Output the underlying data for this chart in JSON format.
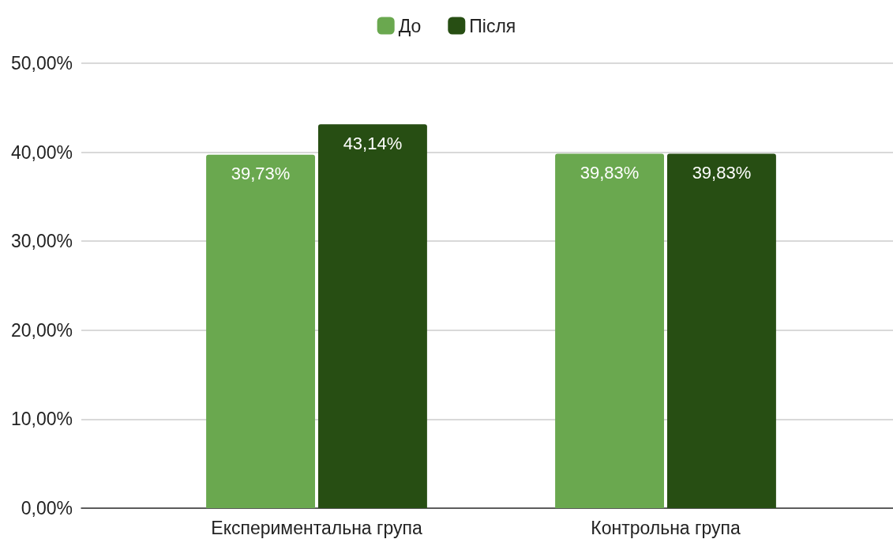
{
  "chart_data": {
    "type": "bar",
    "categories": [
      "Експериментальна група",
      "Контрольна група"
    ],
    "series": [
      {
        "name": "До",
        "color": "#6aa84f",
        "values": [
          39.73,
          39.83
        ],
        "value_labels": [
          "39,73%",
          "39,83%"
        ]
      },
      {
        "name": "Після",
        "color": "#274e13",
        "values": [
          43.14,
          39.83
        ],
        "value_labels": [
          "43,14%",
          "39,83%"
        ]
      }
    ],
    "ylim": [
      0,
      50
    ],
    "yticks": [
      {
        "value": 0,
        "label": "0,00%"
      },
      {
        "value": 10,
        "label": "10,00%"
      },
      {
        "value": 20,
        "label": "20,00%"
      },
      {
        "value": 30,
        "label": "30,00%"
      },
      {
        "value": 40,
        "label": "40,00%"
      },
      {
        "value": 50,
        "label": "50,00%"
      }
    ],
    "grid": "y",
    "legend": "top"
  }
}
